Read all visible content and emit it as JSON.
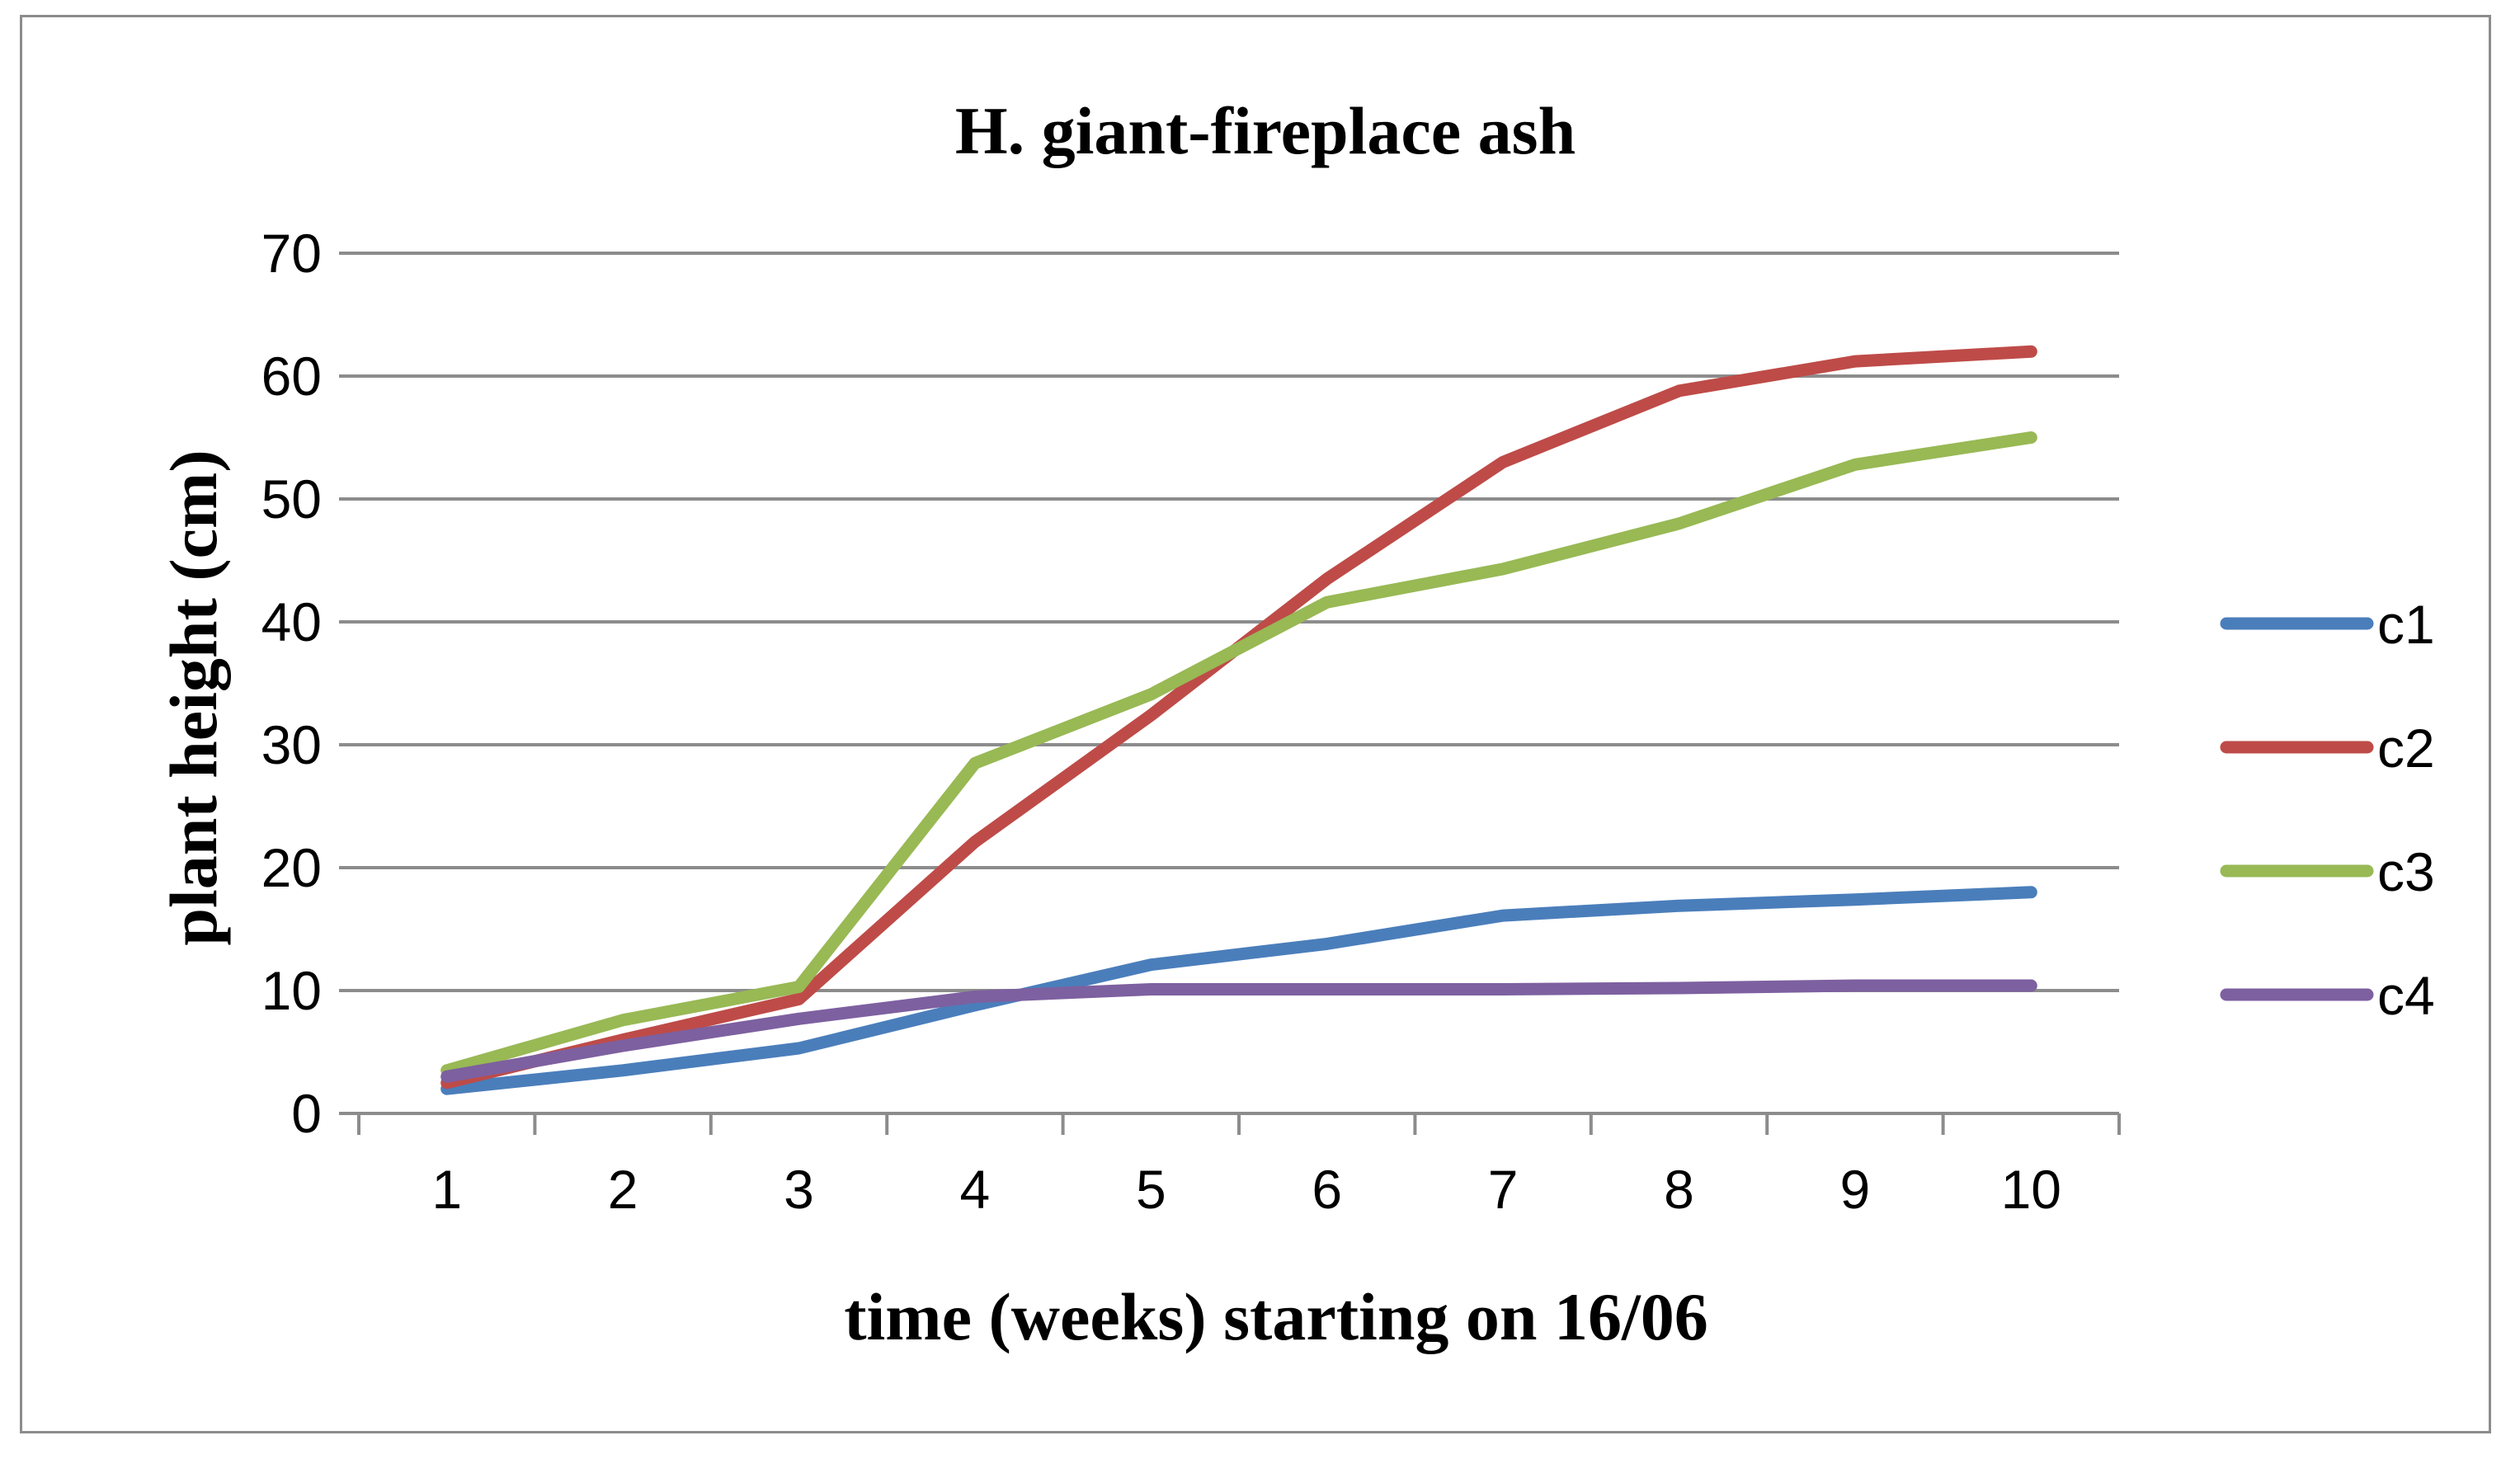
{
  "chart_data": {
    "type": "line",
    "title": "H. giant-fireplace ash",
    "xlabel": "time (weeks) starting on 16/06",
    "ylabel": "plant height (cm)",
    "categories": [
      "1",
      "2",
      "3",
      "4",
      "5",
      "6",
      "7",
      "8",
      "9",
      "10"
    ],
    "ylim": [
      0,
      70
    ],
    "yticks": [
      "0",
      "10",
      "20",
      "30",
      "40",
      "50",
      "60",
      "70"
    ],
    "grid": true,
    "legend_position": "right",
    "series": [
      {
        "name": "c1",
        "color": "#4a7ebb",
        "values": [
          2,
          3.5,
          5.3,
          8.8,
          12.1,
          13.8,
          16.1,
          16.9,
          17.4,
          18
        ]
      },
      {
        "name": "c2",
        "color": "#be4b48",
        "values": [
          2.5,
          6,
          9.3,
          22.1,
          32.4,
          43.5,
          53,
          58.8,
          61.2,
          62
        ]
      },
      {
        "name": "c3",
        "color": "#98b954",
        "values": [
          3.5,
          7.6,
          10.3,
          28.5,
          34.1,
          41.6,
          44.3,
          48,
          52.8,
          55
        ]
      },
      {
        "name": "c4",
        "color": "#7d60a0",
        "values": [
          3,
          5.5,
          7.7,
          9.5,
          10.1,
          10.1,
          10.1,
          10.2,
          10.4,
          10.4
        ]
      }
    ]
  }
}
